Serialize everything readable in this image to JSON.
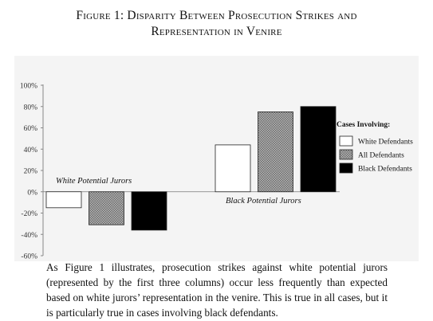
{
  "figure": {
    "title_line1": "Figure 1: Disparity Between Prosecution Strikes and",
    "title_line2": "Representation in Venire"
  },
  "caption": "As Figure 1 illustrates, prosecution strikes against white potential jurors (represented by the first three columns) occur less frequently than expected based on white jurors’ representation in the venire. This is true in all cases, but it is particularly true in cases involving black defendants.",
  "chart_data": {
    "type": "bar",
    "categories": [
      "White Potential Jurors",
      "Black Potential Jurors"
    ],
    "series": [
      {
        "name": "White Defendants",
        "values": [
          -15,
          44
        ],
        "color": "#ffffff",
        "pattern": "none"
      },
      {
        "name": "All Defendants",
        "values": [
          -31,
          75
        ],
        "color": "#9a9a9a",
        "pattern": "checker"
      },
      {
        "name": "Black Defendants",
        "values": [
          -36,
          80
        ],
        "color": "#000000",
        "pattern": "none"
      }
    ],
    "ylim": [
      -60,
      100
    ],
    "yticks": [
      100,
      80,
      60,
      40,
      20,
      0,
      -20,
      -40,
      -60
    ],
    "ytick_labels": [
      "100%",
      "80%",
      "60%",
      "40%",
      "20%",
      "0%",
      "-20%",
      "-40%",
      "-60%"
    ],
    "legend": {
      "title": "Cases Involving:",
      "placement": "right"
    },
    "grid": false
  }
}
